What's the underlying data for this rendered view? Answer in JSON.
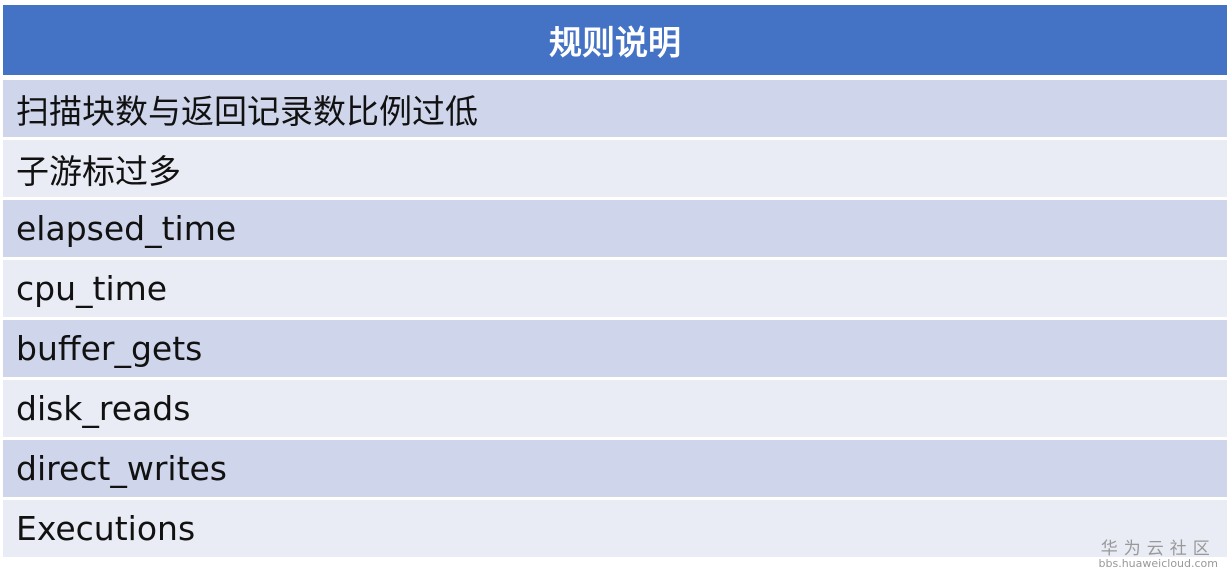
{
  "table": {
    "header": "规则说明",
    "rows": [
      "扫描块数与返回记录数比例过低",
      "子游标过多",
      "elapsed_time",
      "cpu_time",
      "buffer_gets",
      "disk_reads",
      "direct_writes",
      "Executions"
    ]
  },
  "watermark": {
    "cn": "华为云社区",
    "url": "bbs.huaweicloud.com"
  },
  "colors": {
    "header": "#4472C4",
    "row_odd": "#CFD5EA",
    "row_even": "#E9EBF5"
  }
}
